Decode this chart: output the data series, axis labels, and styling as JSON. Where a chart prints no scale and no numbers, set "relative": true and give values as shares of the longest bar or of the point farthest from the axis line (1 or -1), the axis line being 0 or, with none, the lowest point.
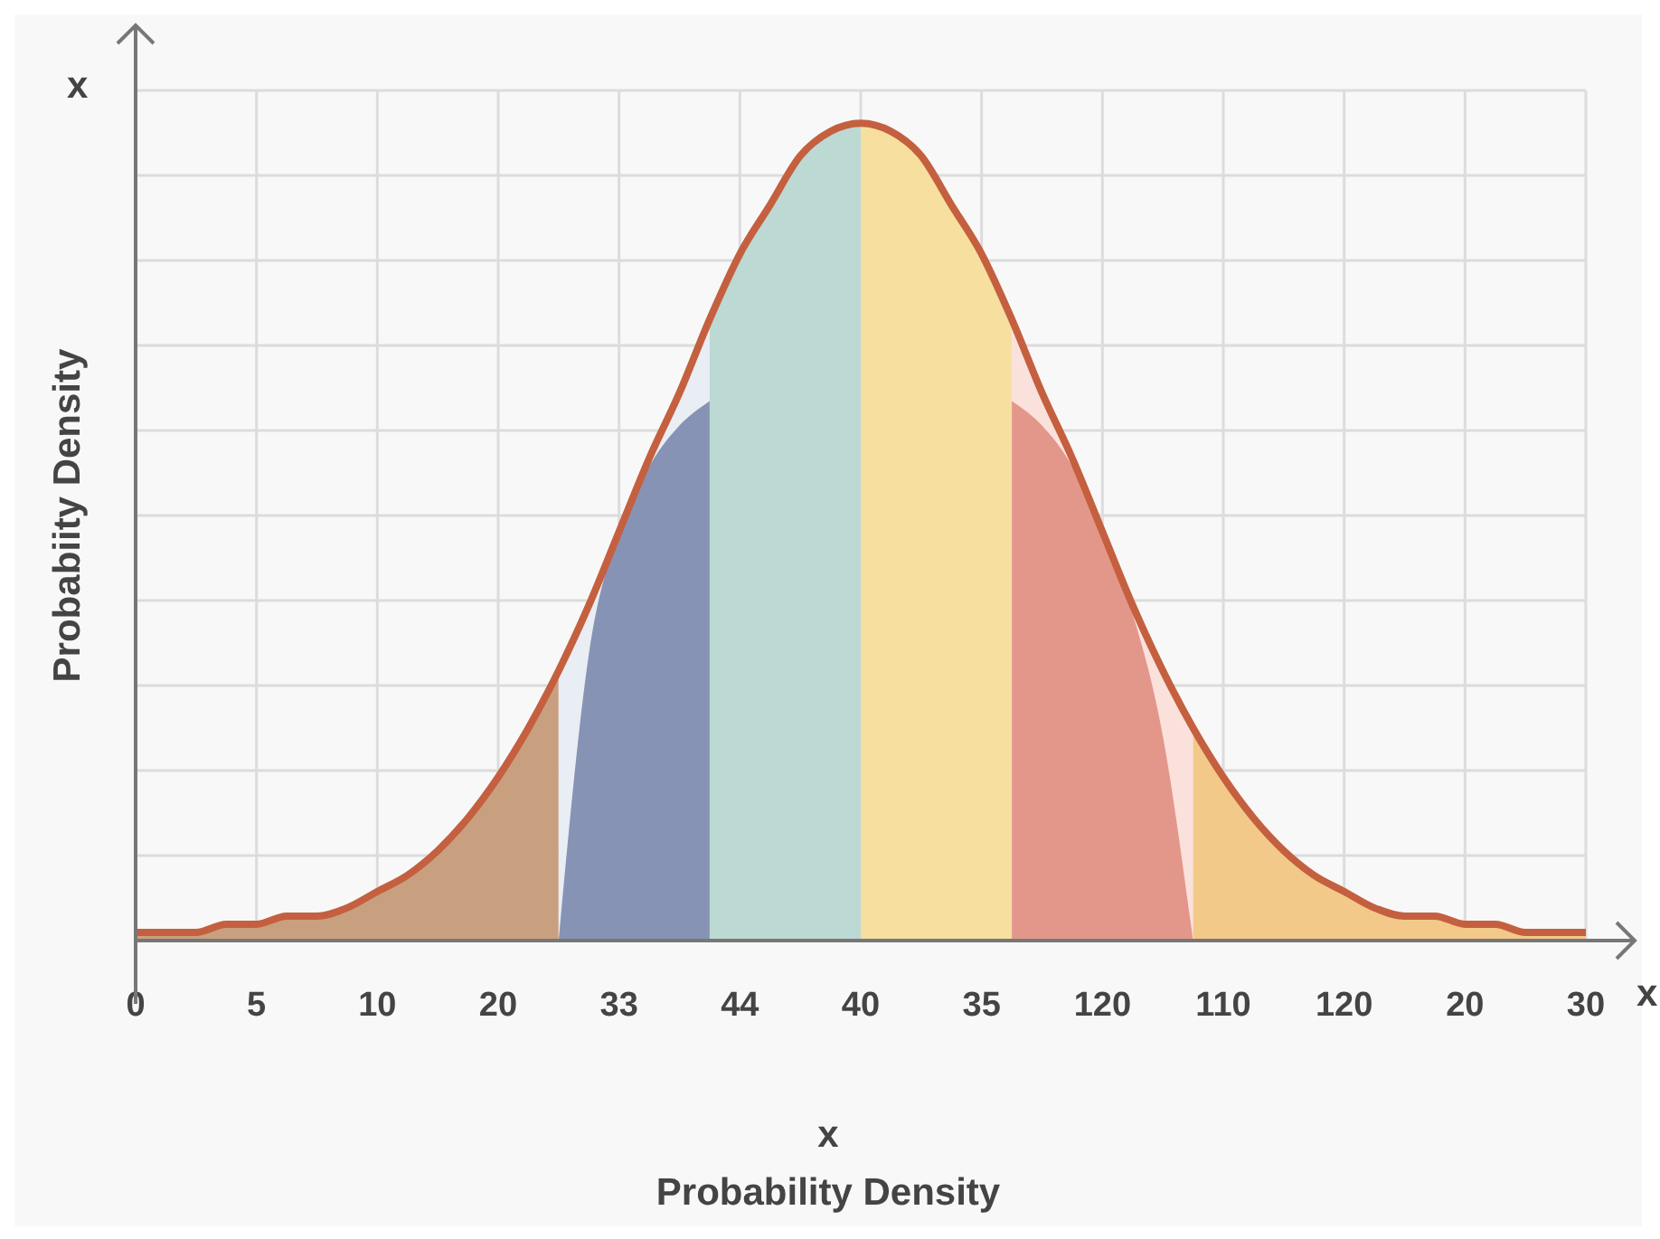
{
  "chart_data": {
    "type": "area",
    "relative": true,
    "ylabel": "Probabiity Density",
    "xlabel": "x",
    "annotations": [
      "x",
      "x",
      "Probability Density"
    ],
    "grid": true,
    "categories": [
      "0",
      null,
      null,
      null,
      "5",
      null,
      null,
      null,
      "10",
      null,
      null,
      null,
      "20",
      null,
      null,
      null,
      "33",
      null,
      null,
      null,
      "44",
      null,
      null,
      null,
      "40",
      null,
      null,
      null,
      "35",
      null,
      null,
      null,
      "120",
      null,
      null,
      null,
      "110",
      null,
      null,
      null,
      "120",
      null,
      null,
      null,
      "20",
      null,
      null,
      null,
      "30"
    ],
    "series": [
      {
        "color": "#c9a07f",
        "values": [
          0.01,
          0.01,
          0.01,
          0.02,
          0.02,
          0.03,
          0.03,
          0.04,
          0.06,
          0.08,
          0.11,
          0.15,
          0.2,
          0.26,
          0.33,
          null,
          null,
          null,
          null,
          null,
          null,
          null,
          null,
          null,
          null,
          null,
          null,
          null,
          null,
          null,
          null,
          null,
          null,
          null,
          null,
          null,
          null,
          null,
          null,
          null,
          null,
          null,
          null,
          null,
          null,
          null,
          null,
          null,
          null
        ]
      },
      {
        "color": "#e9edf4",
        "values": [
          null,
          null,
          null,
          null,
          null,
          null,
          null,
          null,
          null,
          null,
          null,
          null,
          null,
          null,
          0.33,
          0.41,
          0.5,
          0.59,
          0.67,
          0.76,
          null,
          null,
          null,
          null,
          null,
          null,
          null,
          null,
          null,
          null,
          null,
          null,
          null,
          null,
          null,
          null,
          null,
          null,
          null,
          null,
          null,
          null,
          null,
          null,
          null,
          null,
          null,
          null,
          null
        ]
      },
      {
        "color": "#8793b5",
        "values": [
          null,
          null,
          null,
          null,
          null,
          null,
          null,
          null,
          null,
          null,
          null,
          null,
          null,
          null,
          0,
          0.35,
          0.5,
          0.58,
          0.63,
          0.66,
          null,
          null,
          null,
          null,
          null,
          null,
          null,
          null,
          null,
          null,
          null,
          null,
          null,
          null,
          null,
          null,
          null,
          null,
          null,
          null,
          null,
          null,
          null,
          null,
          null,
          null,
          null,
          null,
          null
        ]
      },
      {
        "color": "#bcd9d4",
        "values": [
          null,
          null,
          null,
          null,
          null,
          null,
          null,
          null,
          null,
          null,
          null,
          null,
          null,
          null,
          null,
          null,
          null,
          null,
          null,
          0.76,
          0.84,
          0.9,
          0.96,
          0.99,
          1,
          null,
          null,
          null,
          null,
          null,
          null,
          null,
          null,
          null,
          null,
          null,
          null,
          null,
          null,
          null,
          null,
          null,
          null,
          null,
          null,
          null,
          null,
          null,
          null
        ]
      },
      {
        "color": "#f7dfa0",
        "values": [
          null,
          null,
          null,
          null,
          null,
          null,
          null,
          null,
          null,
          null,
          null,
          null,
          null,
          null,
          null,
          null,
          null,
          null,
          null,
          null,
          null,
          null,
          null,
          null,
          1,
          0.99,
          0.96,
          0.9,
          0.84,
          0.76,
          null,
          null,
          null,
          null,
          null,
          null,
          null,
          null,
          null,
          null,
          null,
          null,
          null,
          null,
          null,
          null,
          null,
          null,
          null
        ]
      },
      {
        "color": "#fbe1dc",
        "values": [
          null,
          null,
          null,
          null,
          null,
          null,
          null,
          null,
          null,
          null,
          null,
          null,
          null,
          null,
          null,
          null,
          null,
          null,
          null,
          null,
          null,
          null,
          null,
          null,
          null,
          null,
          null,
          null,
          null,
          0.76,
          0.67,
          0.59,
          0.5,
          0.41,
          0.33,
          0.26,
          null,
          null,
          null,
          null,
          null,
          null,
          null,
          null,
          null,
          null,
          null,
          null,
          null
        ]
      },
      {
        "color": "#e3978a",
        "values": [
          null,
          null,
          null,
          null,
          null,
          null,
          null,
          null,
          null,
          null,
          null,
          null,
          null,
          null,
          null,
          null,
          null,
          null,
          null,
          null,
          null,
          null,
          null,
          null,
          null,
          null,
          null,
          null,
          null,
          0.66,
          0.63,
          0.58,
          0.5,
          0.4,
          0.25,
          0,
          null,
          null,
          null,
          null,
          null,
          null,
          null,
          null,
          null,
          null,
          null,
          null,
          null
        ]
      },
      {
        "color": "#f3c98a",
        "values": [
          null,
          null,
          null,
          null,
          null,
          null,
          null,
          null,
          null,
          null,
          null,
          null,
          null,
          null,
          null,
          null,
          null,
          null,
          null,
          null,
          null,
          null,
          null,
          null,
          null,
          null,
          null,
          null,
          null,
          null,
          null,
          null,
          null,
          null,
          null,
          0.26,
          0.2,
          0.15,
          0.11,
          0.08,
          0.06,
          0.04,
          0.03,
          0.03,
          0.02,
          0.02,
          0.01,
          0.01,
          0.01
        ]
      },
      {
        "type": "line",
        "color": "#c4603f",
        "values": [
          0.01,
          0.01,
          0.01,
          0.02,
          0.02,
          0.03,
          0.03,
          0.04,
          0.06,
          0.08,
          0.11,
          0.15,
          0.2,
          0.26,
          0.33,
          0.41,
          0.5,
          0.59,
          0.67,
          0.76,
          0.84,
          0.9,
          0.96,
          0.99,
          1,
          0.99,
          0.96,
          0.9,
          0.84,
          0.76,
          0.67,
          0.59,
          0.5,
          0.41,
          0.33,
          0.26,
          0.2,
          0.15,
          0.11,
          0.08,
          0.06,
          0.04,
          0.03,
          0.03,
          0.02,
          0.02,
          0.01,
          0.01,
          0.01
        ]
      }
    ]
  }
}
